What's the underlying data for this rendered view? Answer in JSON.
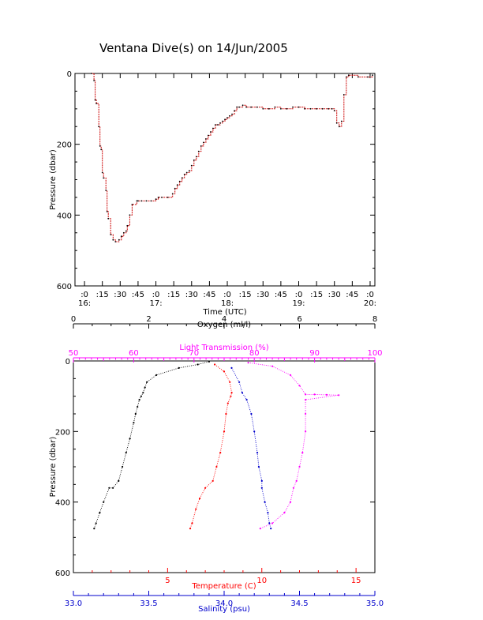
{
  "title": "Ventana Dive(s) on 14/Jun/2005",
  "colors": {
    "oxygen": "#000000",
    "temperature": "#ff0000",
    "salinity": "#0000cc",
    "light": "#ff00ff",
    "dive": "#cc0000"
  },
  "chart_data": [
    {
      "type": "line",
      "title": "Ventana Dive(s) on 14/Jun/2005",
      "xlabel": "Time (UTC)",
      "ylabel": "Pressure (dbar)",
      "x_ticks": [
        {
          "t": 0,
          "min": ":0",
          "hour": "16:"
        },
        {
          "t": 15,
          "min": ":15",
          "hour": ""
        },
        {
          "t": 30,
          "min": ":30",
          "hour": ""
        },
        {
          "t": 45,
          "min": ":45",
          "hour": ""
        },
        {
          "t": 60,
          "min": ":0",
          "hour": "17:"
        },
        {
          "t": 75,
          "min": ":15",
          "hour": ""
        },
        {
          "t": 90,
          "min": ":30",
          "hour": ""
        },
        {
          "t": 105,
          "min": ":45",
          "hour": ""
        },
        {
          "t": 120,
          "min": ":0",
          "hour": "18:"
        },
        {
          "t": 135,
          "min": ":15",
          "hour": ""
        },
        {
          "t": 150,
          "min": ":30",
          "hour": ""
        },
        {
          "t": 165,
          "min": ":45",
          "hour": ""
        },
        {
          "t": 180,
          "min": ":0",
          "hour": "19:"
        },
        {
          "t": 195,
          "min": ":15",
          "hour": ""
        },
        {
          "t": 210,
          "min": ":30",
          "hour": ""
        },
        {
          "t": 225,
          "min": ":45",
          "hour": ""
        },
        {
          "t": 240,
          "min": ":0",
          "hour": "20:"
        }
      ],
      "y_ticks": [
        "0",
        "200",
        "400",
        "600"
      ],
      "xlim": [
        -8,
        244
      ],
      "ylim": [
        600,
        0
      ],
      "series": [
        {
          "x": [
            6,
            8,
            9,
            10,
            12,
            13,
            14,
            15,
            16,
            18,
            19,
            20,
            22,
            24,
            26,
            29,
            31,
            33,
            35,
            36,
            38,
            40,
            44,
            45,
            48,
            52,
            56,
            60,
            62,
            65,
            70,
            74,
            76,
            78,
            80,
            82,
            84,
            86,
            88,
            90,
            92,
            94,
            96,
            98,
            100,
            102,
            104,
            106,
            108,
            110,
            112,
            114,
            116,
            118,
            120,
            122,
            124,
            126,
            128,
            130,
            133,
            136,
            140,
            145,
            150,
            155,
            160,
            165,
            170,
            175,
            180,
            185,
            190,
            195,
            200,
            205,
            208,
            210,
            212,
            214,
            216,
            218,
            220,
            222,
            230,
            238,
            242
          ],
          "y": [
            0,
            20,
            75,
            85,
            150,
            205,
            215,
            280,
            295,
            330,
            390,
            410,
            455,
            470,
            475,
            470,
            460,
            450,
            445,
            430,
            400,
            370,
            360,
            360,
            360,
            360,
            360,
            355,
            350,
            350,
            350,
            340,
            325,
            315,
            305,
            295,
            285,
            280,
            275,
            260,
            245,
            235,
            220,
            205,
            195,
            185,
            175,
            165,
            155,
            145,
            145,
            140,
            135,
            130,
            125,
            120,
            115,
            105,
            95,
            95,
            90,
            95,
            95,
            95,
            100,
            100,
            95,
            100,
            100,
            95,
            95,
            100,
            100,
            100,
            100,
            100,
            100,
            105,
            140,
            150,
            135,
            60,
            10,
            5,
            10,
            10,
            5
          ]
        }
      ]
    },
    {
      "type": "scatter",
      "ylabel": "Pressure (dbar)",
      "ylim": [
        600,
        0
      ],
      "y_ticks": [
        "0",
        "200",
        "400",
        "600"
      ],
      "axes": {
        "oxygen": {
          "label": "Oxygen (ml/l)",
          "range": [
            0,
            8
          ],
          "ticks": [
            "0",
            "2",
            "4",
            "6",
            "8"
          ]
        },
        "light": {
          "label": "Light Transmission (%)",
          "range": [
            50,
            100
          ],
          "ticks": [
            "50",
            "60",
            "70",
            "80",
            "90",
            "100"
          ]
        },
        "temperature": {
          "label": "Temperature (C)",
          "range": [
            0,
            16
          ],
          "ticks": [
            "5",
            "10",
            "15"
          ]
        },
        "salinity": {
          "label": "Salinity (psu)",
          "range": [
            33.0,
            35.0
          ],
          "ticks": [
            "33.0",
            "33.5",
            "34.0",
            "34.5",
            "35.0"
          ]
        }
      },
      "series": [
        {
          "name": "Oxygen",
          "axis": "oxygen",
          "points": [
            [
              3.6,
              2
            ],
            [
              3.3,
              10
            ],
            [
              2.8,
              20
            ],
            [
              2.2,
              40
            ],
            [
              1.95,
              60
            ],
            [
              1.9,
              75
            ],
            [
              1.85,
              90
            ],
            [
              1.8,
              100
            ],
            [
              1.75,
              110
            ],
            [
              1.7,
              130
            ],
            [
              1.65,
              150
            ],
            [
              1.6,
              175
            ],
            [
              1.5,
              220
            ],
            [
              1.4,
              260
            ],
            [
              1.3,
              300
            ],
            [
              1.2,
              340
            ],
            [
              1.05,
              360
            ],
            [
              0.95,
              360
            ],
            [
              0.8,
              400
            ],
            [
              0.7,
              430
            ],
            [
              0.6,
              460
            ],
            [
              0.55,
              475
            ]
          ]
        },
        {
          "name": "Temperature",
          "axis": "temperature",
          "points": [
            [
              7.5,
              10
            ],
            [
              8.0,
              30
            ],
            [
              8.3,
              60
            ],
            [
              8.4,
              90
            ],
            [
              8.35,
              100
            ],
            [
              8.2,
              120
            ],
            [
              8.1,
              150
            ],
            [
              8.0,
              200
            ],
            [
              7.8,
              260
            ],
            [
              7.6,
              300
            ],
            [
              7.4,
              340
            ],
            [
              7.0,
              360
            ],
            [
              6.7,
              390
            ],
            [
              6.5,
              420
            ],
            [
              6.3,
              460
            ],
            [
              6.2,
              475
            ]
          ]
        },
        {
          "name": "Salinity",
          "axis": "salinity",
          "points": [
            [
              34.05,
              20
            ],
            [
              34.1,
              60
            ],
            [
              34.12,
              90
            ],
            [
              34.15,
              110
            ],
            [
              34.18,
              150
            ],
            [
              34.2,
              200
            ],
            [
              34.22,
              260
            ],
            [
              34.23,
              300
            ],
            [
              34.25,
              340
            ],
            [
              34.25,
              360
            ],
            [
              34.27,
              400
            ],
            [
              34.29,
              430
            ],
            [
              34.3,
              460
            ],
            [
              34.31,
              475
            ]
          ]
        },
        {
          "name": "Light Transmission",
          "axis": "light",
          "points": [
            [
              79,
              5
            ],
            [
              83,
              15
            ],
            [
              86,
              40
            ],
            [
              87.5,
              70
            ],
            [
              88.5,
              95
            ],
            [
              90,
              95
            ],
            [
              92,
              96
            ],
            [
              94,
              97
            ],
            [
              88.5,
              110
            ],
            [
              88.5,
              150
            ],
            [
              88.5,
              200
            ],
            [
              88,
              260
            ],
            [
              87.5,
              300
            ],
            [
              87,
              340
            ],
            [
              86.5,
              360
            ],
            [
              86,
              400
            ],
            [
              85,
              430
            ],
            [
              83,
              460
            ],
            [
              81,
              475
            ]
          ]
        }
      ]
    }
  ]
}
